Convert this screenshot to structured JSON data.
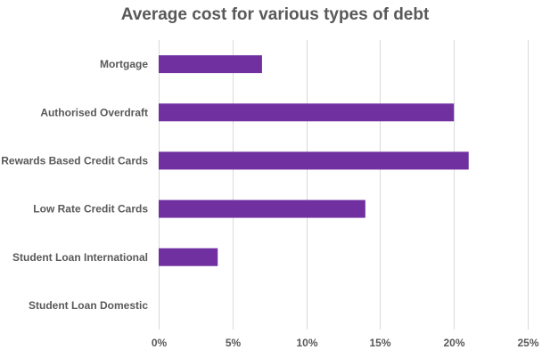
{
  "chart_data": {
    "type": "bar",
    "orientation": "horizontal",
    "title": "Average cost for various types of debt",
    "categories": [
      "Mortgage",
      "Authorised Overdraft",
      "Rewards Based Credit Cards",
      "Low Rate Credit Cards",
      "Student Loan International",
      "Student Loan Domestic"
    ],
    "values": [
      7,
      20,
      21,
      14,
      4,
      0
    ],
    "unit": "%",
    "xlabel": "",
    "ylabel": "",
    "xlim": [
      0,
      25
    ],
    "ticks": [
      "0%",
      "5%",
      "10%",
      "15%",
      "20%",
      "25%"
    ],
    "tick_values": [
      0,
      5,
      10,
      15,
      20,
      25
    ],
    "grid": true,
    "legend": "none",
    "bar_color": "#7030a0"
  }
}
